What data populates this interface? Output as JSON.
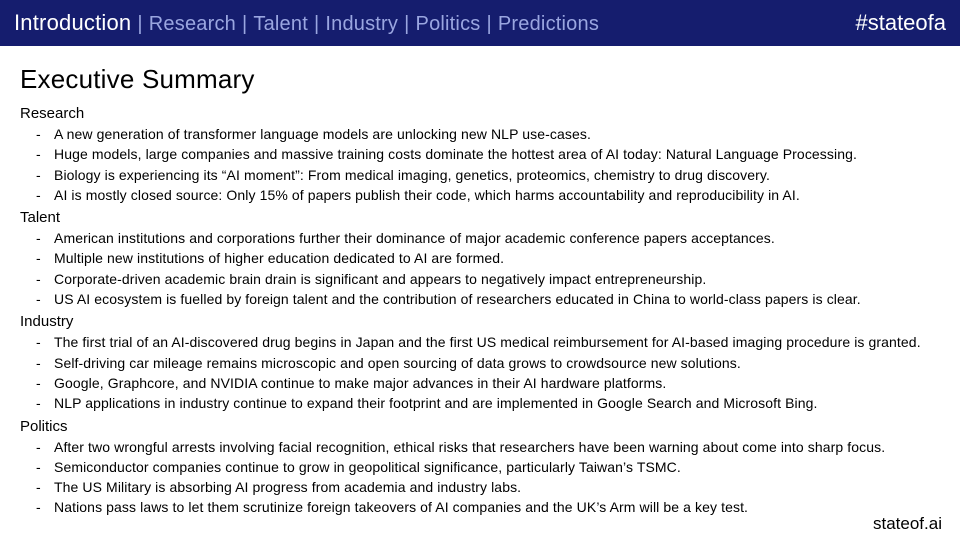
{
  "colors": {
    "nav_bg": "#151d6e",
    "nav_active": "#ffffff",
    "nav_inactive": "#9aa6e0",
    "text": "#000000",
    "page_bg": "#ffffff"
  },
  "nav": {
    "tabs": [
      "Introduction",
      "Research",
      "Talent",
      "Industry",
      "Politics",
      "Predictions"
    ],
    "active_index": 0,
    "separator": "|",
    "hashtag": "#stateofa"
  },
  "title": "Executive Summary",
  "sections": [
    {
      "heading": "Research",
      "items": [
        "A new generation of transformer language models are unlocking new NLP use-cases.",
        "Huge models, large companies and massive training costs dominate the hottest area of AI today: Natural Language Processing.",
        "Biology is experiencing its “AI moment”: From medical imaging, genetics, proteomics, chemistry to drug discovery.",
        "AI is mostly closed source: Only 15% of papers publish their code, which harms accountability and reproducibility in AI."
      ]
    },
    {
      "heading": "Talent",
      "items": [
        "American institutions and corporations further their dominance of major academic conference papers acceptances.",
        "Multiple new institutions of higher education dedicated to AI are formed.",
        "Corporate-driven academic brain drain is significant and appears to negatively impact entrepreneurship.",
        "US AI ecosystem is fuelled by foreign talent and the contribution of researchers educated in China to world-class papers is clear."
      ]
    },
    {
      "heading": "Industry",
      "items": [
        "The first trial of an AI-discovered drug begins in Japan and the first US medical reimbursement for AI-based imaging procedure is granted.",
        "Self-driving car mileage remains microscopic and open sourcing of data grows to crowdsource new solutions.",
        "Google, Graphcore, and NVIDIA continue to make major advances in their AI hardware platforms.",
        "NLP applications in industry continue to expand their footprint and are implemented in Google Search and Microsoft Bing."
      ]
    },
    {
      "heading": "Politics",
      "items": [
        "After two wrongful arrests involving facial recognition, ethical risks that researchers have been warning about come into sharp focus.",
        "Semiconductor companies continue to grow in geopolitical significance, particularly Taiwan’s TSMC.",
        "The US Military is absorbing AI progress from academia and industry labs.",
        "Nations pass laws to let them scrutinize foreign takeovers of AI companies and the UK’s Arm will be a key test."
      ]
    }
  ],
  "footer": "stateof.ai"
}
